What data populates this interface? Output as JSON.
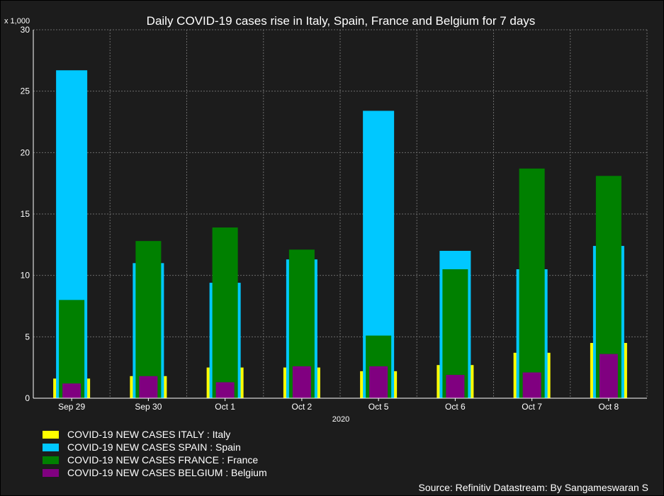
{
  "chart_data": {
    "type": "bar",
    "title": "Daily COVID-19 cases rise in Italy, Spain, France and Belgium for 7 days",
    "ylabel": "x 1,000",
    "xlabel": "2020",
    "ylim": [
      0,
      30
    ],
    "yticks": [
      0,
      5,
      10,
      15,
      20,
      25,
      30
    ],
    "grid": true,
    "categories": [
      "Sep 29",
      "Sep 30",
      "Oct 1",
      "Oct 2",
      "Oct 5",
      "Oct 6",
      "Oct 7",
      "Oct 8"
    ],
    "series": [
      {
        "name": "COVID-19 NEW CASES ITALY : Italy",
        "color": "#ffff00",
        "values": [
          1.6,
          1.8,
          2.5,
          2.5,
          2.2,
          2.7,
          3.7,
          4.5
        ]
      },
      {
        "name": "COVID-19 NEW CASES SPAIN : Spain",
        "color": "#00c8ff",
        "values": [
          26.7,
          11.0,
          9.4,
          11.3,
          23.4,
          12.0,
          10.5,
          12.4
        ]
      },
      {
        "name": "COVID-19 NEW CASES FRANCE : France",
        "color": "#008000",
        "values": [
          8.0,
          12.8,
          13.9,
          12.1,
          5.1,
          10.5,
          18.7,
          18.1
        ]
      },
      {
        "name": "COVID-19 NEW CASES BELGIUM : Belgium",
        "color": "#800080",
        "values": [
          1.2,
          1.8,
          1.3,
          2.6,
          2.6,
          1.9,
          2.1,
          3.6
        ]
      }
    ],
    "legend_position": "bottom-left"
  },
  "source": "Source: Refinitiv Datastream: By Sangameswaran S",
  "colors": {
    "background": "#1c1c1c",
    "plot_background": "#1c1c1c",
    "grid": "#6a6a6a",
    "text": "#ffffff"
  }
}
